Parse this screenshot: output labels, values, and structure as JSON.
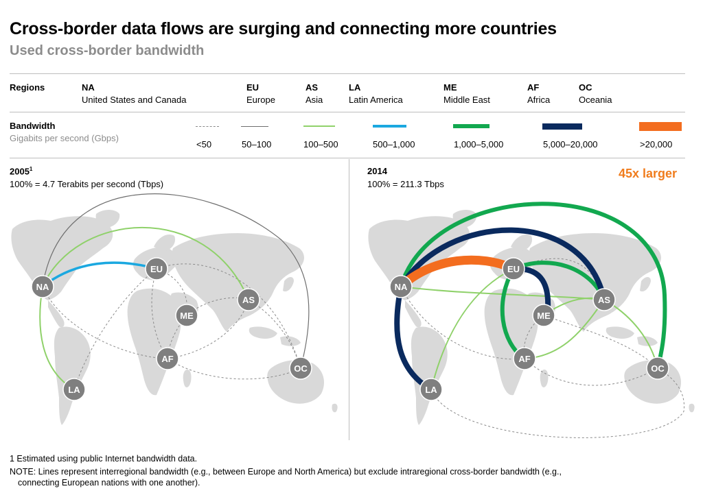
{
  "header": {
    "title": "Cross-border data flows are surging and connecting more countries",
    "subtitle": "Used cross-border bandwidth"
  },
  "regions": {
    "label": "Regions",
    "items": [
      {
        "code": "NA",
        "name": "United States and Canada"
      },
      {
        "code": "EU",
        "name": "Europe"
      },
      {
        "code": "AS",
        "name": "Asia"
      },
      {
        "code": "LA",
        "name": "Latin America"
      },
      {
        "code": "ME",
        "name": "Middle East"
      },
      {
        "code": "AF",
        "name": "Africa"
      },
      {
        "code": "OC",
        "name": "Oceania"
      }
    ]
  },
  "bandwidth": {
    "label": "Bandwidth",
    "unit": "Gigabits per second (Gbps)",
    "scale": [
      {
        "range": "<50",
        "color": "#8a8a8a",
        "style": "dashed"
      },
      {
        "range": "50–100",
        "color": "#6e6e6e",
        "style": "solid-thin"
      },
      {
        "range": "100–500",
        "color": "#8fd16a",
        "style": "solid"
      },
      {
        "range": "500–1,000",
        "color": "#1ba8e0",
        "style": "solid"
      },
      {
        "range": "1,000–5,000",
        "color": "#12a84f",
        "style": "thick"
      },
      {
        "range": "5,000–20,000",
        "color": "#0a2a5e",
        "style": "thicker"
      },
      {
        "range": ">20,000",
        "color": "#f36d1f",
        "style": "thickest"
      }
    ]
  },
  "panel_2005": {
    "year": "2005",
    "footnote_mark": "1",
    "total": "100% = 4.7 Terabits per second (Tbps)"
  },
  "panel_2014": {
    "year": "2014",
    "total": "100% = 211.3 Tbps",
    "callout": "45x larger",
    "callout_color": "#f07c1c"
  },
  "node_labels": {
    "NA": "NA",
    "EU": "EU",
    "AS": "AS",
    "ME": "ME",
    "AF": "AF",
    "LA": "LA",
    "OC": "OC"
  },
  "footnotes": {
    "note1": "1 Estimated using public Internet bandwidth data.",
    "note2_line1": "NOTE:  Lines represent interregional bandwidth (e.g., between Europe and North America) but exclude intraregional cross-border bandwidth (e.g.,",
    "note2_line2": "connecting European nations with one another)."
  },
  "colors": {
    "node_fill": "#7f7f7f",
    "land": "#d9d9d9",
    "dashed": "#8a8a8a",
    "thin_grey": "#6e6e6e",
    "light_green": "#8fd16a",
    "blue": "#1ba8e0",
    "green": "#12a84f",
    "navy": "#0a2a5e",
    "orange": "#f36d1f"
  }
}
